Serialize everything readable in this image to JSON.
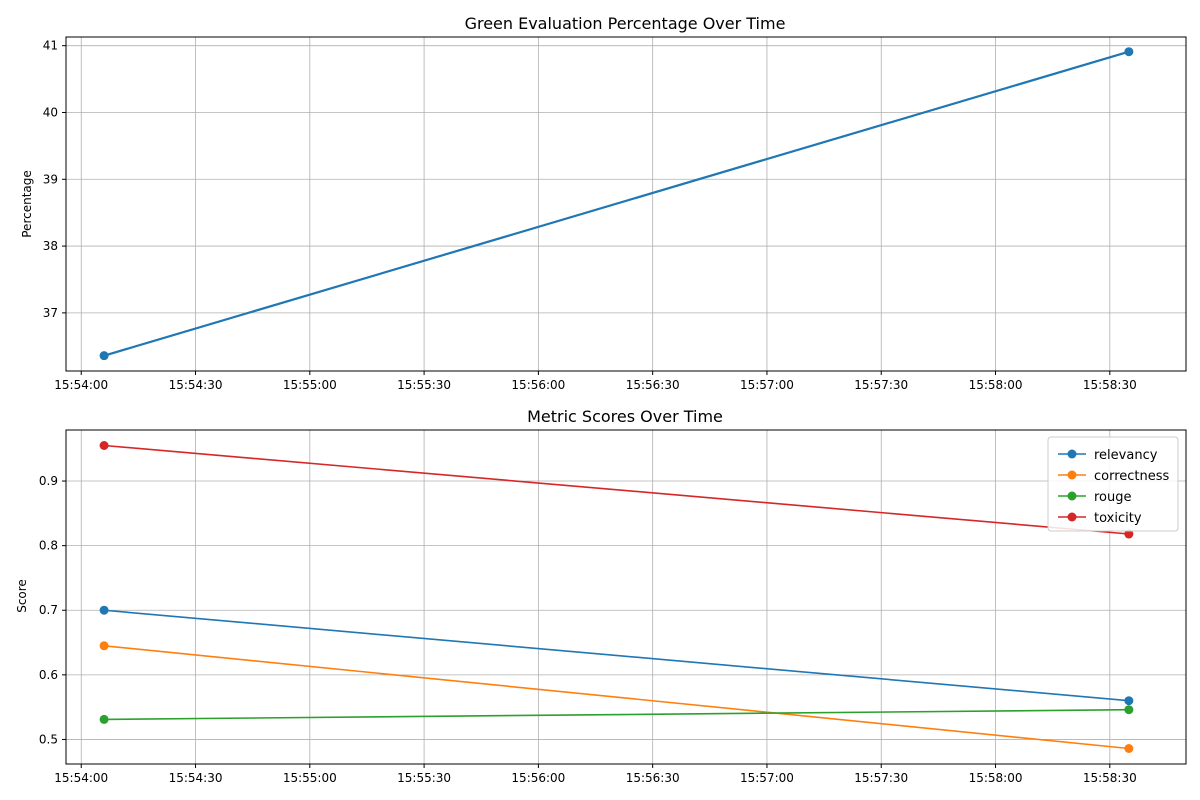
{
  "chart_data": [
    {
      "type": "line",
      "title": "Green Evaluation Percentage Over Time",
      "xlabel": "",
      "ylabel": "Percentage",
      "x": [
        "15:54:06",
        "15:58:35"
      ],
      "x_ticks": [
        "15:54:00",
        "15:54:30",
        "15:55:00",
        "15:55:30",
        "15:56:00",
        "15:56:30",
        "15:57:00",
        "15:57:30",
        "15:58:00",
        "15:58:30"
      ],
      "xlim": [
        "15:53:56",
        "15:58:50"
      ],
      "y_ticks": [
        37,
        38,
        39,
        40,
        41
      ],
      "ylim": [
        36.13,
        41.13
      ],
      "grid": true,
      "series": [
        {
          "values": [
            36.36,
            40.91
          ],
          "color": "#1f77b4"
        }
      ]
    },
    {
      "type": "line",
      "title": "Metric Scores Over Time",
      "xlabel": "",
      "ylabel": "Score",
      "x": [
        "15:54:06",
        "15:58:35"
      ],
      "x_ticks": [
        "15:54:00",
        "15:54:30",
        "15:55:00",
        "15:55:30",
        "15:56:00",
        "15:56:30",
        "15:57:00",
        "15:57:30",
        "15:58:00",
        "15:58:30"
      ],
      "xlim": [
        "15:53:56",
        "15:58:50"
      ],
      "y_ticks": [
        0.5,
        0.6,
        0.7,
        0.8,
        0.9
      ],
      "ylim": [
        0.462,
        0.979
      ],
      "grid": true,
      "legend": "top-right",
      "series": [
        {
          "name": "relevancy",
          "values": [
            0.7,
            0.56
          ],
          "color": "#1f77b4"
        },
        {
          "name": "correctness",
          "values": [
            0.645,
            0.486
          ],
          "color": "#ff7f0e"
        },
        {
          "name": "rouge",
          "values": [
            0.531,
            0.546
          ],
          "color": "#2ca02c"
        },
        {
          "name": "toxicity",
          "values": [
            0.955,
            0.818
          ],
          "color": "#d62728"
        }
      ]
    }
  ]
}
